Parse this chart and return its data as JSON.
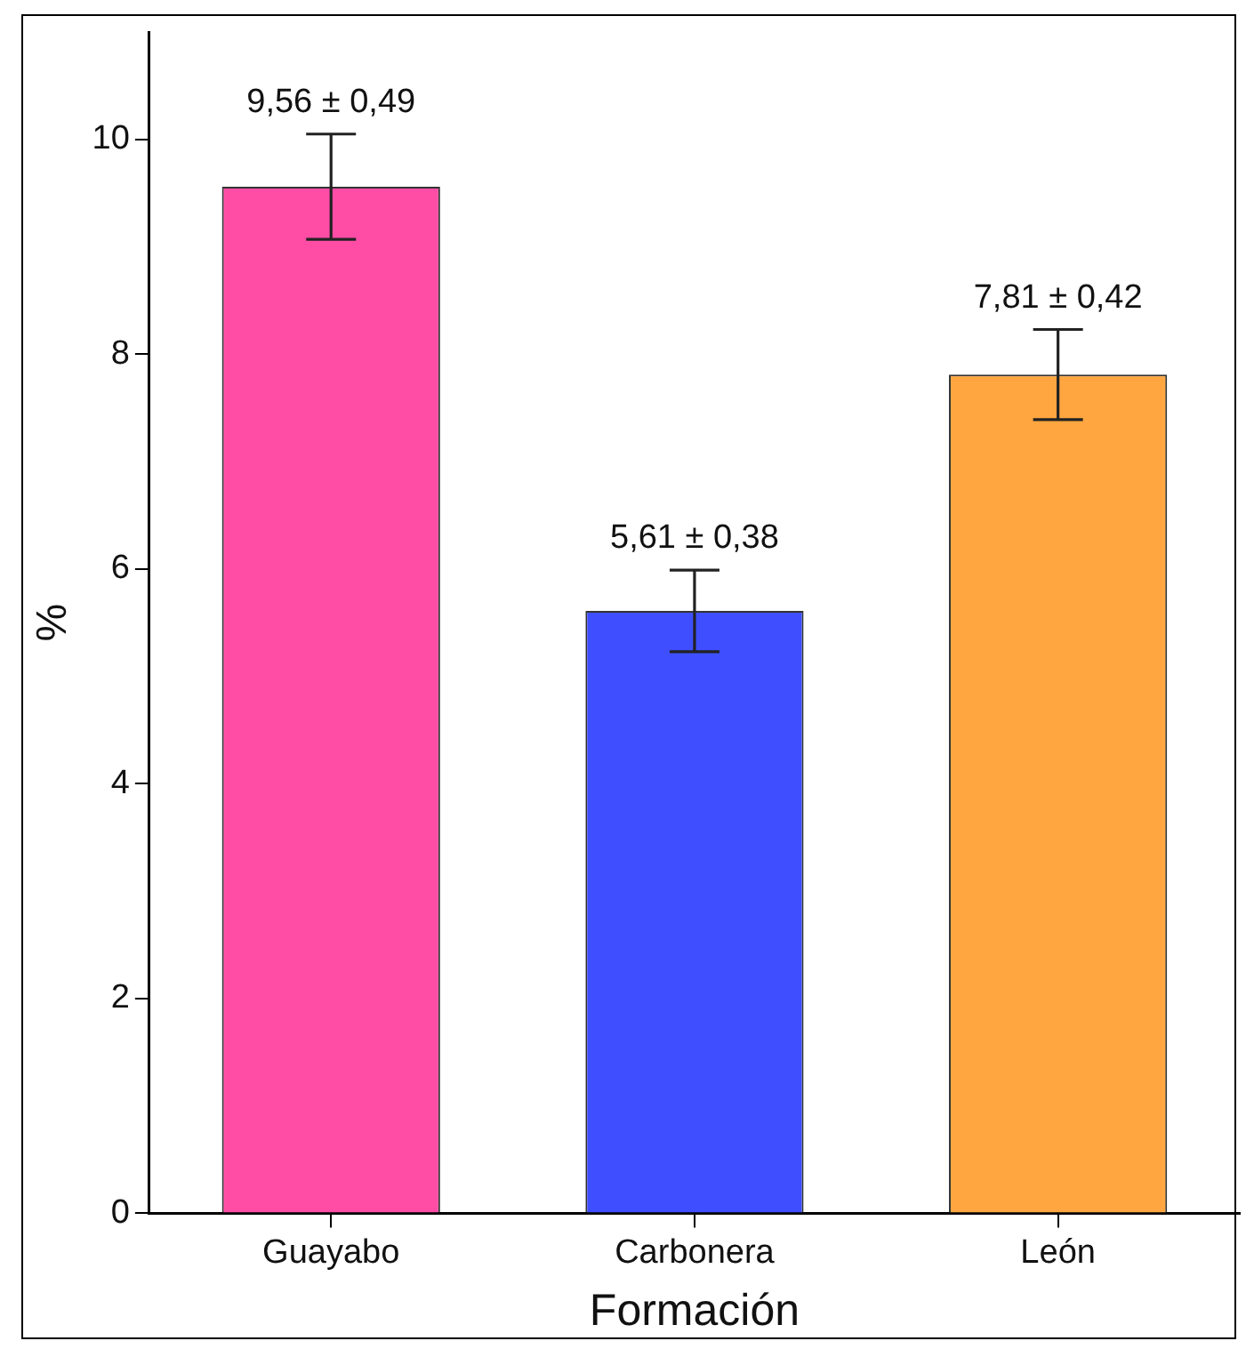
{
  "chart_data": {
    "type": "bar",
    "xlabel": "Formación",
    "ylabel": "%",
    "categories": [
      "Guayabo",
      "Carbonera",
      "León"
    ],
    "values": [
      9.56,
      5.61,
      7.81
    ],
    "errors": [
      0.49,
      0.38,
      0.42
    ],
    "value_labels": [
      "9,56 ± 0,49",
      "5,61 ± 0,38",
      "7,81 ± 0,42"
    ],
    "colors": [
      "#ff4da6",
      "#3f4fff",
      "#ffa640"
    ],
    "ylim": [
      0,
      11
    ],
    "yticks": [
      0,
      2,
      4,
      6,
      8,
      10
    ],
    "grid": false,
    "legend": false
  }
}
